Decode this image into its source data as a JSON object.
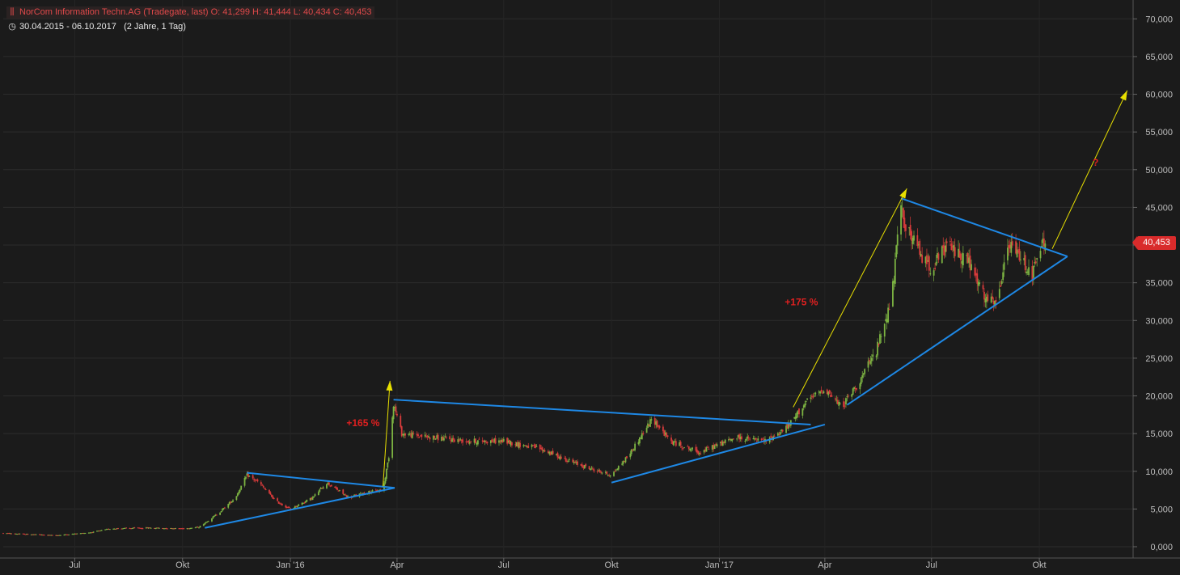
{
  "header": {
    "instrument": "NorCom Information Techn.AG (Tradegate, last)",
    "open_label": "O:",
    "open": "41,299",
    "high_label": "H:",
    "high": "41,444",
    "low_label": "L:",
    "low": "40,434",
    "close_label": "C:",
    "close": "40,453",
    "date_range": "30.04.2015 - 06.10.2017",
    "period": "(2 Jahre, 1 Tag)",
    "chart_icon": "candlestick-icon",
    "clock_icon": "clock-icon"
  },
  "last_price": "40,453",
  "colors": {
    "background": "#1b1b1b",
    "up_candle": "#7cb342",
    "down_candle": "#d83b3b",
    "trendline": "#1e88e5",
    "arrow": "#e8e000",
    "annotation": "#e02020",
    "price_badge": "#d92b2b"
  },
  "chart_data": {
    "type": "candlestick",
    "x_tick_labels": [
      "Jul",
      "Okt",
      "Jan '16",
      "Apr",
      "Jul",
      "Okt",
      "Jan '17",
      "Apr",
      "Jul",
      "Okt"
    ],
    "x_tick_dates": [
      "2015-07-01",
      "2015-10-01",
      "2016-01-01",
      "2016-04-01",
      "2016-07-01",
      "2016-10-01",
      "2017-01-01",
      "2017-04-01",
      "2017-07-01",
      "2017-10-01"
    ],
    "y_tick_labels": [
      "0,000",
      "5,000",
      "10,000",
      "15,000",
      "20,000",
      "25,000",
      "30,000",
      "35,000",
      "40,000",
      "45,000",
      "50,000",
      "55,000",
      "60,000",
      "65,000",
      "70,000"
    ],
    "y_ticks": [
      0,
      5,
      10,
      15,
      20,
      25,
      30,
      35,
      40,
      45,
      50,
      55,
      60,
      65,
      70
    ],
    "ylim": [
      -1.5,
      72.5
    ],
    "xlim": [
      "2015-05-01",
      "2017-12-20"
    ],
    "y_axis_position": "right",
    "grid": true,
    "price_path": [
      [
        "2015-05-01",
        1.8
      ],
      [
        "2015-06-15",
        1.5
      ],
      [
        "2015-07-15",
        1.9
      ],
      [
        "2015-08-01",
        2.4
      ],
      [
        "2015-09-01",
        2.5
      ],
      [
        "2015-10-01",
        2.4
      ],
      [
        "2015-10-15",
        2.6
      ],
      [
        "2015-11-01",
        4.5
      ],
      [
        "2015-11-15",
        6.5
      ],
      [
        "2015-11-25",
        9.5
      ],
      [
        "2015-12-05",
        8.5
      ],
      [
        "2015-12-20",
        6.0
      ],
      [
        "2016-01-01",
        5.0
      ],
      [
        "2016-01-20",
        6.5
      ],
      [
        "2016-02-01",
        8.5
      ],
      [
        "2016-02-20",
        6.5
      ],
      [
        "2016-03-05",
        7.2
      ],
      [
        "2016-03-20",
        7.5
      ],
      [
        "2016-03-25",
        12.0
      ],
      [
        "2016-03-29",
        19.0
      ],
      [
        "2016-04-05",
        15.0
      ],
      [
        "2016-05-01",
        14.5
      ],
      [
        "2016-06-01",
        14.0
      ],
      [
        "2016-07-01",
        14.0
      ],
      [
        "2016-08-01",
        13.0
      ],
      [
        "2016-09-01",
        11.0
      ],
      [
        "2016-09-20",
        10.0
      ],
      [
        "2016-10-01",
        9.5
      ],
      [
        "2016-10-15",
        12.0
      ],
      [
        "2016-11-05",
        17.0
      ],
      [
        "2016-11-20",
        14.0
      ],
      [
        "2016-12-15",
        12.5
      ],
      [
        "2017-01-15",
        14.5
      ],
      [
        "2017-02-10",
        14.0
      ],
      [
        "2017-03-01",
        16.0
      ],
      [
        "2017-03-15",
        19.0
      ],
      [
        "2017-04-01",
        21.0
      ],
      [
        "2017-04-15",
        18.5
      ],
      [
        "2017-05-01",
        22.0
      ],
      [
        "2017-05-15",
        26.0
      ],
      [
        "2017-05-28",
        33.0
      ],
      [
        "2017-06-05",
        45.0
      ],
      [
        "2017-06-10",
        42.0
      ],
      [
        "2017-06-25",
        38.0
      ],
      [
        "2017-07-01",
        37.0
      ],
      [
        "2017-07-15",
        40.0
      ],
      [
        "2017-08-01",
        38.0
      ],
      [
        "2017-08-15",
        33.0
      ],
      [
        "2017-08-25",
        32.0
      ],
      [
        "2017-09-05",
        40.0
      ],
      [
        "2017-09-15",
        38.5
      ],
      [
        "2017-09-25",
        36.0
      ],
      [
        "2017-10-03",
        40.0
      ],
      [
        "2017-10-06",
        40.453
      ]
    ],
    "trendlines": [
      {
        "from": [
          "2015-10-20",
          2.5
        ],
        "to": [
          "2016-03-30",
          7.8
        ]
      },
      {
        "from": [
          "2015-11-25",
          9.8
        ],
        "to": [
          "2016-03-30",
          7.8
        ]
      },
      {
        "from": [
          "2016-03-29",
          19.5
        ],
        "to": [
          "2017-03-20",
          16.2
        ]
      },
      {
        "from": [
          "2016-10-01",
          8.5
        ],
        "to": [
          "2017-04-01",
          16.2
        ]
      },
      {
        "from": [
          "2017-04-20",
          18.8
        ],
        "to": [
          "2017-10-25",
          38.5
        ]
      },
      {
        "from": [
          "2017-06-05",
          46.2
        ],
        "to": [
          "2017-10-25",
          38.5
        ]
      }
    ],
    "arrows": [
      {
        "from": [
          "2016-03-20",
          8.0
        ],
        "to": [
          "2016-03-26",
          22.0
        ]
      },
      {
        "from": [
          "2017-03-05",
          18.5
        ],
        "to": [
          "2017-06-10",
          47.5
        ]
      },
      {
        "from": [
          "2017-10-12",
          39.5
        ],
        "to": [
          "2017-12-15",
          60.5
        ]
      }
    ],
    "annotations": [
      {
        "text": "+165 %",
        "at": [
          "2016-03-03",
          16.0
        ]
      },
      {
        "text": "+175 %",
        "at": [
          "2017-03-12",
          32.0
        ]
      },
      {
        "text": "?",
        "at": [
          "2017-11-18",
          50.5
        ]
      }
    ]
  }
}
